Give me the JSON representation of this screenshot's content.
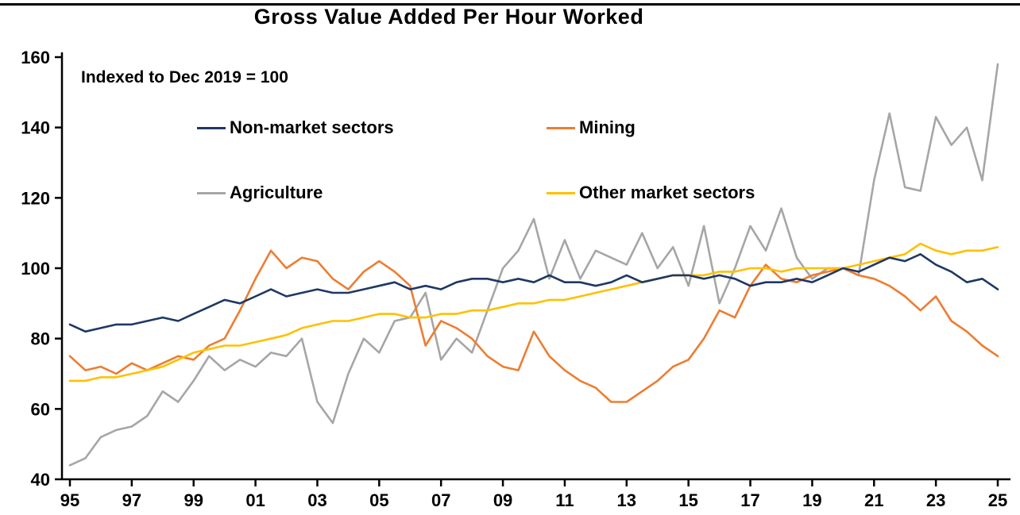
{
  "chart_data": {
    "type": "line",
    "title": "Gross Value Added Per Hour Worked",
    "subtitle": "Indexed to Dec 2019 = 100",
    "xlabel": "",
    "ylabel": "",
    "ylim": [
      40,
      160
    ],
    "yticks": [
      40,
      60,
      80,
      100,
      120,
      140,
      160
    ],
    "xticks": [
      "95",
      "97",
      "99",
      "01",
      "03",
      "05",
      "07",
      "09",
      "11",
      "13",
      "15",
      "17",
      "19",
      "21",
      "23",
      "25"
    ],
    "xtick_years": [
      1995,
      1997,
      1999,
      2001,
      2003,
      2005,
      2007,
      2009,
      2011,
      2013,
      2015,
      2017,
      2019,
      2021,
      2023,
      2025
    ],
    "grid": false,
    "legend_position": "inside-top",
    "x": [
      1995,
      1995.5,
      1996,
      1996.5,
      1997,
      1997.5,
      1998,
      1998.5,
      1999,
      1999.5,
      2000,
      2000.5,
      2001,
      2001.5,
      2002,
      2002.5,
      2003,
      2003.5,
      2004,
      2004.5,
      2005,
      2005.5,
      2006,
      2006.5,
      2007,
      2007.5,
      2008,
      2008.5,
      2009,
      2009.5,
      2010,
      2010.5,
      2011,
      2011.5,
      2012,
      2012.5,
      2013,
      2013.5,
      2014,
      2014.5,
      2015,
      2015.5,
      2016,
      2016.5,
      2017,
      2017.5,
      2018,
      2018.5,
      2019,
      2019.5,
      2020,
      2020.5,
      2021,
      2021.5,
      2022,
      2022.5,
      2023,
      2023.5,
      2024,
      2024.5,
      2025
    ],
    "series": [
      {
        "name": "Non-market sectors",
        "color": "#1F3864",
        "values": [
          84,
          82,
          83,
          84,
          84,
          85,
          86,
          85,
          87,
          89,
          91,
          90,
          92,
          94,
          92,
          93,
          94,
          93,
          93,
          94,
          95,
          96,
          94,
          95,
          94,
          96,
          97,
          97,
          96,
          97,
          96,
          98,
          96,
          96,
          95,
          96,
          98,
          96,
          97,
          98,
          98,
          97,
          98,
          97,
          95,
          96,
          96,
          97,
          96,
          98,
          100,
          99,
          101,
          103,
          102,
          104,
          101,
          99,
          96,
          97,
          94
        ]
      },
      {
        "name": "Mining",
        "color": "#ED7D31",
        "values": [
          75,
          71,
          72,
          70,
          73,
          71,
          73,
          75,
          74,
          78,
          80,
          88,
          97,
          105,
          100,
          103,
          102,
          97,
          94,
          99,
          102,
          99,
          95,
          78,
          85,
          83,
          80,
          75,
          72,
          71,
          82,
          75,
          71,
          68,
          66,
          62,
          62,
          65,
          68,
          72,
          74,
          80,
          88,
          86,
          95,
          101,
          97,
          96,
          98,
          99,
          100,
          98,
          97,
          95,
          92,
          88,
          92,
          85,
          82,
          78,
          75
        ]
      },
      {
        "name": "Agriculture",
        "color": "#A6A6A6",
        "values": [
          44,
          46,
          52,
          54,
          55,
          58,
          65,
          62,
          68,
          75,
          71,
          74,
          72,
          76,
          75,
          80,
          62,
          56,
          70,
          80,
          76,
          85,
          86,
          93,
          74,
          80,
          76,
          88,
          100,
          105,
          114,
          97,
          108,
          97,
          105,
          103,
          101,
          110,
          100,
          106,
          95,
          112,
          90,
          100,
          112,
          105,
          117,
          103,
          97,
          100,
          100,
          98,
          125,
          144,
          123,
          122,
          143,
          135,
          140,
          125,
          158
        ]
      },
      {
        "name": "Other market sectors",
        "color": "#FFC000",
        "values": [
          68,
          68,
          69,
          69,
          70,
          71,
          72,
          74,
          76,
          77,
          78,
          78,
          79,
          80,
          81,
          83,
          84,
          85,
          85,
          86,
          87,
          87,
          86,
          86,
          87,
          87,
          88,
          88,
          89,
          90,
          90,
          91,
          91,
          92,
          93,
          94,
          95,
          96,
          97,
          98,
          98,
          98,
          99,
          99,
          100,
          100,
          99,
          100,
          100,
          100,
          100,
          101,
          102,
          103,
          104,
          107,
          105,
          104,
          105,
          105,
          106
        ]
      }
    ]
  }
}
